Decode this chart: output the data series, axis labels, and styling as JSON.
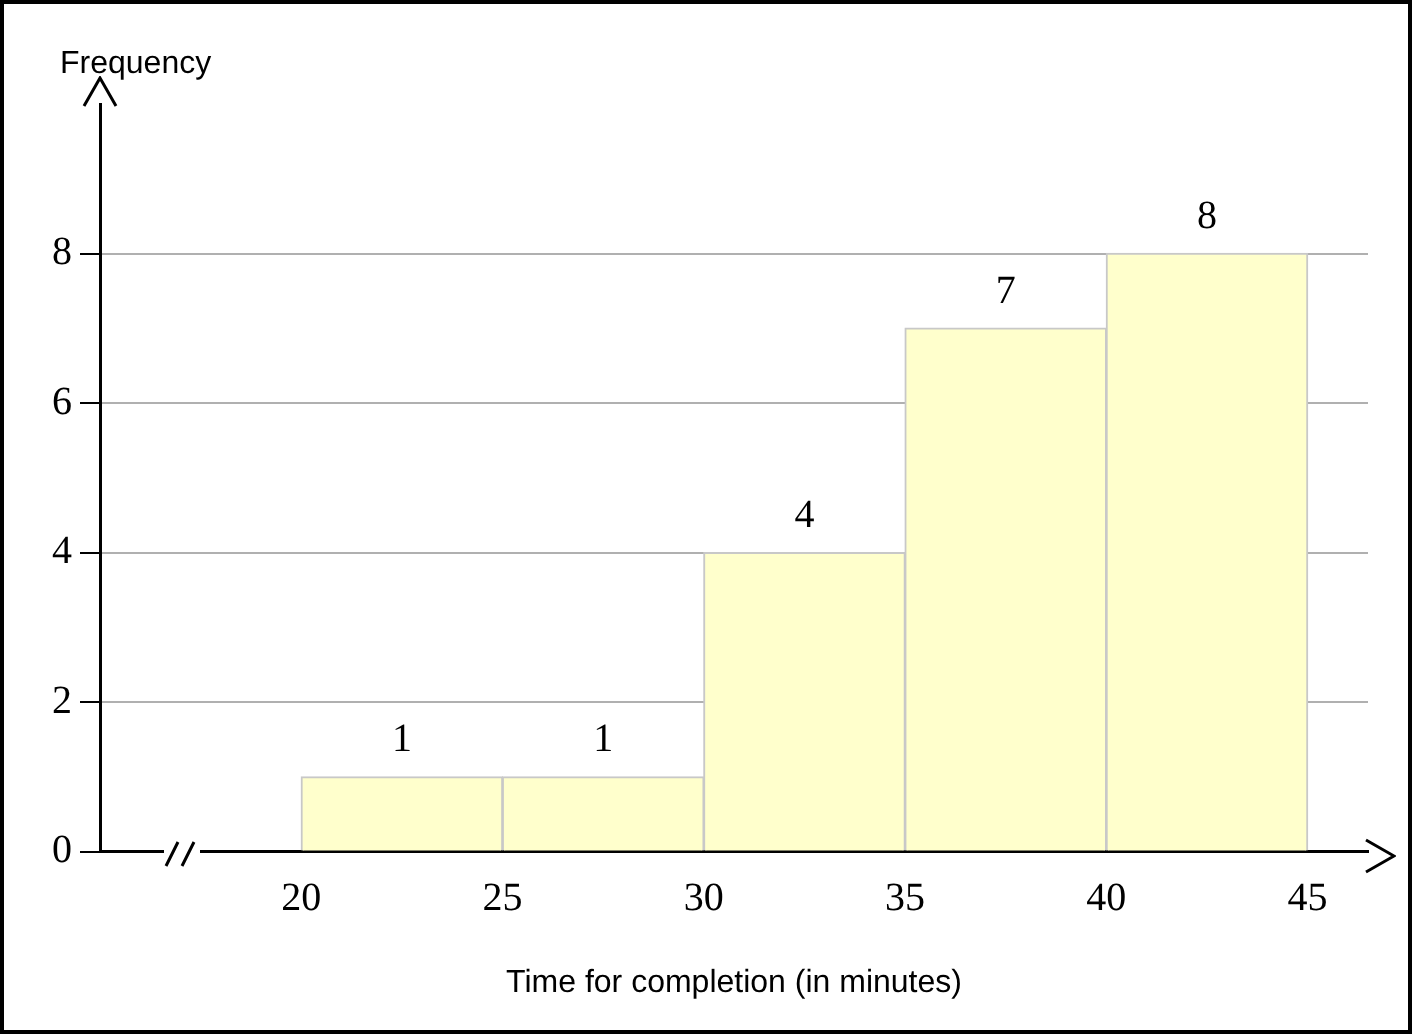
{
  "chart_data": {
    "type": "histogram",
    "xlabel": "Time for completion (in minutes)",
    "ylabel": "Frequency",
    "bins": [
      20,
      25,
      30,
      35,
      40,
      45
    ],
    "values": [
      1,
      1,
      4,
      7,
      8
    ],
    "color": "#ffffcc",
    "xlim": [
      15,
      46.5
    ],
    "xticks": [
      20,
      25,
      30,
      35,
      40,
      45
    ],
    "ylim": [
      0,
      10
    ],
    "yticks": [
      0,
      2,
      4,
      6,
      8
    ],
    "grid": "y",
    "legend": false,
    "data_labels": true
  }
}
